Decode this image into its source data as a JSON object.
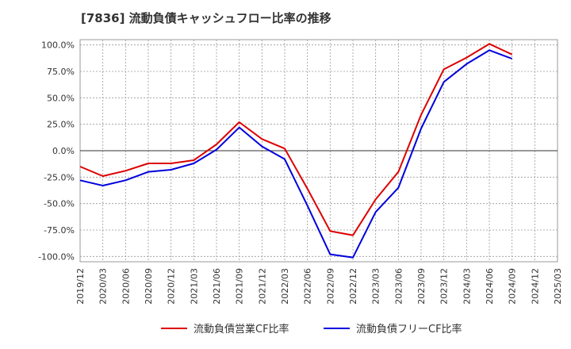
{
  "chart_data": {
    "type": "line",
    "title": "[7836]  流動負債キャッシュフロー比率の推移",
    "xlabel": "",
    "ylabel": "",
    "ylim": [
      -105,
      105
    ],
    "y_ticks": [
      "100.0%",
      "75.0%",
      "50.0%",
      "25.0%",
      "0.0%",
      "-25.0%",
      "-50.0%",
      "-75.0%",
      "-100.0%"
    ],
    "y_tick_values": [
      100,
      75,
      50,
      25,
      0,
      -25,
      -50,
      -75,
      -100
    ],
    "x_ticks": [
      "2019/12",
      "2020/03",
      "2020/06",
      "2020/09",
      "2020/12",
      "2021/03",
      "2021/06",
      "2021/09",
      "2021/12",
      "2022/03",
      "2022/06",
      "2022/09",
      "2022/12",
      "2023/03",
      "2023/06",
      "2023/09",
      "2023/12",
      "2024/03",
      "2024/06",
      "2024/09",
      "2024/12",
      "2025/03"
    ],
    "grid": true,
    "legend_position": "bottom",
    "series": [
      {
        "name": "流動負債営業CF比率",
        "color": "#dd0000",
        "x": [
          "2019/12",
          "2020/03",
          "2020/06",
          "2020/09",
          "2020/12",
          "2021/03",
          "2021/06",
          "2021/09",
          "2021/12",
          "2022/03",
          "2022/06",
          "2022/09",
          "2022/12",
          "2023/03",
          "2023/06",
          "2023/09",
          "2023/12",
          "2024/03",
          "2024/06",
          "2024/09"
        ],
        "values": [
          -15,
          -24,
          -19,
          -12,
          -12,
          -9,
          6,
          27,
          11,
          2,
          -36,
          -76,
          -80,
          -46,
          -20,
          34,
          77,
          88,
          101,
          91
        ]
      },
      {
        "name": "流動負債フリーCF比率",
        "color": "#0000dd",
        "x": [
          "2019/12",
          "2020/03",
          "2020/06",
          "2020/09",
          "2020/12",
          "2021/03",
          "2021/06",
          "2021/09",
          "2021/12",
          "2022/03",
          "2022/06",
          "2022/09",
          "2022/12",
          "2023/03",
          "2023/06",
          "2023/09",
          "2023/12",
          "2024/03",
          "2024/06",
          "2024/09"
        ],
        "values": [
          -28,
          -33,
          -28,
          -20,
          -18,
          -12,
          1,
          22,
          4,
          -8,
          -52,
          -98,
          -101,
          -58,
          -35,
          21,
          65,
          82,
          95,
          87
        ]
      }
    ]
  }
}
